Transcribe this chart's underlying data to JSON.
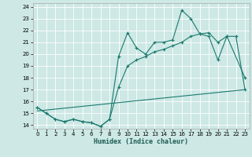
{
  "xlabel": "Humidex (Indice chaleur)",
  "bg_color": "#cde8e5",
  "grid_color": "#b8d8d5",
  "line_color": "#1a7a6e",
  "xlim": [
    -0.5,
    23.5
  ],
  "ylim": [
    13.7,
    24.3
  ],
  "xticks": [
    0,
    1,
    2,
    3,
    4,
    5,
    6,
    7,
    8,
    9,
    10,
    11,
    12,
    13,
    14,
    15,
    16,
    17,
    18,
    19,
    20,
    21,
    22,
    23
  ],
  "yticks": [
    14,
    15,
    16,
    17,
    18,
    19,
    20,
    21,
    22,
    23,
    24
  ],
  "series1_x": [
    0,
    1,
    2,
    3,
    4,
    5,
    6,
    7,
    8,
    9,
    10,
    11,
    12,
    13,
    14,
    15,
    16,
    17,
    18,
    19,
    20,
    21,
    23
  ],
  "series1_y": [
    15.5,
    15.0,
    14.5,
    14.3,
    14.5,
    14.3,
    14.2,
    13.9,
    14.5,
    19.8,
    21.8,
    20.5,
    20.0,
    21.0,
    21.0,
    21.2,
    23.7,
    23.0,
    21.7,
    21.5,
    19.5,
    21.5,
    18.0
  ],
  "series2_x": [
    0,
    1,
    2,
    3,
    4,
    5,
    6,
    7,
    8,
    9,
    10,
    11,
    12,
    13,
    14,
    15,
    16,
    17,
    18,
    19,
    20,
    21,
    22,
    23
  ],
  "series2_y": [
    15.5,
    15.0,
    14.5,
    14.3,
    14.5,
    14.3,
    14.2,
    13.9,
    14.5,
    17.2,
    19.0,
    19.5,
    19.8,
    20.2,
    20.4,
    20.7,
    21.0,
    21.5,
    21.7,
    21.8,
    21.0,
    21.5,
    21.5,
    17.0
  ],
  "series3_x": [
    0,
    23
  ],
  "series3_y": [
    15.2,
    17.0
  ],
  "figsize": [
    3.2,
    2.0
  ],
  "dpi": 100
}
